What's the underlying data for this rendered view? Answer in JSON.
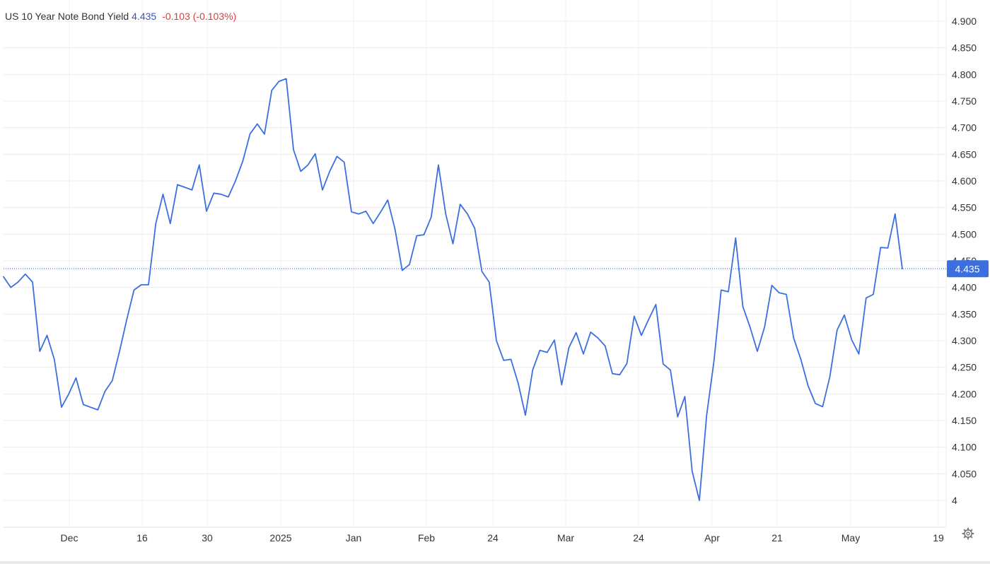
{
  "header": {
    "title": "US 10 Year Note Bond Yield",
    "price": "4.435",
    "change": "-0.103 (-0.103%)"
  },
  "last_price_label": "4.435",
  "colors": {
    "line": "#3b6fe0",
    "price_label_bg": "#3b6fe0",
    "change": "#d33f3f"
  },
  "icons": {
    "settings": "gear-icon"
  },
  "chart_data": {
    "type": "line",
    "title": "US 10 Year Note Bond Yield",
    "ylim": [
      4.0,
      4.9
    ],
    "yticks": [
      "4.900",
      "4.850",
      "4.800",
      "4.750",
      "4.700",
      "4.650",
      "4.600",
      "4.550",
      "4.500",
      "4.450",
      "4.400",
      "4.350",
      "4.300",
      "4.250",
      "4.200",
      "4.150",
      "4.100",
      "4.050",
      "4"
    ],
    "xtick_labels": [
      "Dec",
      "16",
      "30",
      "2025",
      "Jan",
      "Feb",
      "24",
      "Mar",
      "24",
      "Apr",
      "21",
      "May",
      "19"
    ],
    "grid": true,
    "last_value": 4.435,
    "series": [
      {
        "values": [
          4.42,
          4.4,
          4.41,
          4.425,
          4.41,
          4.28,
          4.31,
          4.265,
          4.175,
          4.2,
          4.23,
          4.18,
          4.175,
          4.17,
          4.205,
          4.225,
          4.28,
          4.34,
          4.395,
          4.405,
          4.405,
          4.52,
          4.575,
          4.52,
          4.593,
          4.588,
          4.583,
          4.63,
          4.543,
          4.577,
          4.575,
          4.57,
          4.6,
          4.637,
          4.688,
          4.707,
          4.688,
          4.77,
          4.787,
          4.792,
          4.659,
          4.618,
          4.63,
          4.651,
          4.583,
          4.618,
          4.646,
          4.635,
          4.542,
          4.538,
          4.543,
          4.52,
          4.541,
          4.564,
          4.51,
          4.432,
          4.443,
          4.497,
          4.499,
          4.532,
          4.63,
          4.538,
          4.482,
          4.556,
          4.538,
          4.511,
          4.43,
          4.41,
          4.3,
          4.263,
          4.265,
          4.22,
          4.16,
          4.245,
          4.282,
          4.278,
          4.301,
          4.217,
          4.287,
          4.315,
          4.275,
          4.316,
          4.305,
          4.29,
          4.238,
          4.236,
          4.257,
          4.346,
          4.31,
          4.34,
          4.368,
          4.256,
          4.245,
          4.157,
          4.195,
          4.055,
          4.0,
          4.16,
          4.26,
          4.395,
          4.392,
          4.493,
          4.364,
          4.325,
          4.28,
          4.326,
          4.404,
          4.39,
          4.387,
          4.305,
          4.265,
          4.215,
          4.182,
          4.176,
          4.232,
          4.32,
          4.348,
          4.302,
          4.275,
          4.38,
          4.387,
          4.475,
          4.474,
          4.538,
          4.435
        ]
      }
    ]
  }
}
